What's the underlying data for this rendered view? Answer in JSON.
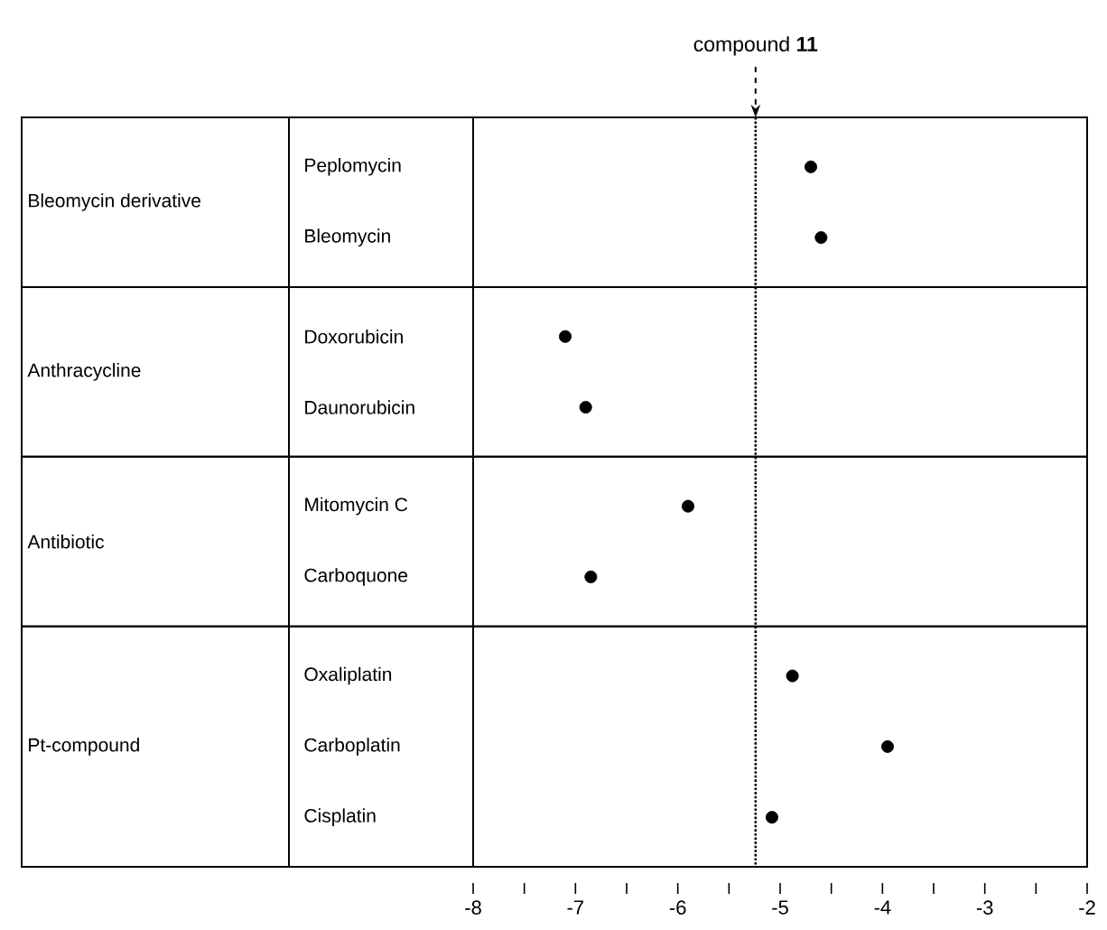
{
  "chart_data": [
    {
      "type": "scatter",
      "orientation": "horizontal",
      "ylabel": "Bleomycin derivative",
      "categories": [
        "Peplomycin",
        "Bleomycin"
      ],
      "values": [
        -4.7,
        -4.6
      ],
      "color": "#000000",
      "xlim": [
        -8,
        -2
      ],
      "ref_lines": [
        {
          "axis": "x",
          "value": -5.24,
          "label": "compound **11**",
          "line_style": "dotted"
        }
      ]
    },
    {
      "type": "scatter",
      "orientation": "horizontal",
      "ylabel": "Anthracycline",
      "categories": [
        "Doxorubicin",
        "Daunorubicin"
      ],
      "values": [
        -7.1,
        -6.9
      ],
      "color": "#000000",
      "xlim": [
        -8,
        -2
      ],
      "ref_lines": [
        {
          "axis": "x",
          "value": -5.24,
          "line_style": "dotted"
        }
      ]
    },
    {
      "type": "scatter",
      "orientation": "horizontal",
      "ylabel": "Antibiotic",
      "categories": [
        "Mitomycin C",
        "Carboquone"
      ],
      "values": [
        -5.9,
        -6.85
      ],
      "color": "#000000",
      "xlim": [
        -8,
        -2
      ],
      "ref_lines": [
        {
          "axis": "x",
          "value": -5.24,
          "line_style": "dotted"
        }
      ]
    },
    {
      "type": "scatter",
      "orientation": "horizontal",
      "ylabel": "Pt-compound",
      "categories": [
        "Oxaliplatin",
        "Carboplatin",
        "Cisplatin"
      ],
      "values": [
        -4.88,
        -3.95,
        -5.08
      ],
      "color": "#000000",
      "xlim": [
        -8,
        -2
      ],
      "xticks": [
        -8,
        {
          "value": -7.5,
          "label": null
        },
        -7,
        {
          "value": -6.5,
          "label": null
        },
        -6,
        {
          "value": -5.5,
          "label": null
        },
        -5,
        {
          "value": -4.5,
          "label": null
        },
        -4,
        {
          "value": -3.5,
          "label": null
        },
        -3,
        {
          "value": -2.5,
          "label": null
        },
        -2
      ],
      "ref_lines": [
        {
          "axis": "x",
          "value": -5.24,
          "line_style": "dotted"
        }
      ]
    }
  ]
}
